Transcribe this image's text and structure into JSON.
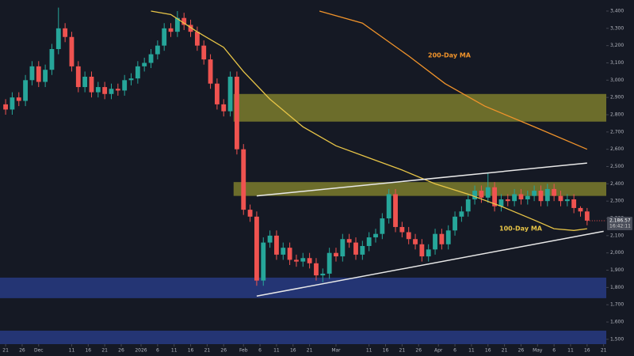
{
  "chart_data": {
    "type": "candlestick",
    "xlim": [
      -1.7,
      181.8
    ],
    "ylim": [
      1472,
      3464
    ],
    "yticks": [
      {
        "value": 1500,
        "label": "1,500"
      },
      {
        "value": 1600,
        "label": "1,600"
      },
      {
        "value": 1700,
        "label": "1,700"
      },
      {
        "value": 1800,
        "label": "1,800"
      },
      {
        "value": 1900,
        "label": "1,900"
      },
      {
        "value": 2000,
        "label": "2,000"
      },
      {
        "value": 2100,
        "label": "2,100"
      },
      {
        "value": 2200,
        "label": "2,200"
      },
      {
        "value": 2300,
        "label": "2,300"
      },
      {
        "value": 2400,
        "label": "2,400"
      },
      {
        "value": 2500,
        "label": "2,500"
      },
      {
        "value": 2600,
        "label": "2,600"
      },
      {
        "value": 2700,
        "label": "2,700"
      },
      {
        "value": 2800,
        "label": "2,800"
      },
      {
        "value": 2900,
        "label": "2,900"
      },
      {
        "value": 3000,
        "label": "3,000"
      },
      {
        "value": 3100,
        "label": "3,100"
      },
      {
        "value": 3200,
        "label": "3,200"
      },
      {
        "value": 3300,
        "label": "3,300"
      },
      {
        "value": 3400,
        "label": "3,400"
      }
    ],
    "xticks": [
      {
        "value": 0,
        "label": "21"
      },
      {
        "value": 5,
        "label": "26"
      },
      {
        "value": 10,
        "label": "Dec"
      },
      {
        "value": 20,
        "label": "11"
      },
      {
        "value": 25,
        "label": "16"
      },
      {
        "value": 30,
        "label": "21"
      },
      {
        "value": 35,
        "label": "26"
      },
      {
        "value": 41,
        "label": "2026"
      },
      {
        "value": 46,
        "label": "6"
      },
      {
        "value": 51,
        "label": "11"
      },
      {
        "value": 56,
        "label": "16"
      },
      {
        "value": 61,
        "label": "21"
      },
      {
        "value": 66,
        "label": "26"
      },
      {
        "value": 72,
        "label": "Feb"
      },
      {
        "value": 77,
        "label": "6"
      },
      {
        "value": 82,
        "label": "11"
      },
      {
        "value": 87,
        "label": "16"
      },
      {
        "value": 92,
        "label": "21"
      },
      {
        "value": 100,
        "label": "Mar"
      },
      {
        "value": 110,
        "label": "11"
      },
      {
        "value": 115,
        "label": "16"
      },
      {
        "value": 120,
        "label": "21"
      },
      {
        "value": 125,
        "label": "26"
      },
      {
        "value": 131,
        "label": "Apr"
      },
      {
        "value": 136,
        "label": "6"
      },
      {
        "value": 141,
        "label": "11"
      },
      {
        "value": 146,
        "label": "16"
      },
      {
        "value": 151,
        "label": "21"
      },
      {
        "value": 156,
        "label": "26"
      },
      {
        "value": 161,
        "label": "May"
      },
      {
        "value": 166,
        "label": "6"
      },
      {
        "value": 171,
        "label": "11"
      },
      {
        "value": 176,
        "label": "16"
      },
      {
        "value": 181,
        "label": "21"
      }
    ],
    "up_color": "#26a69a",
    "down_color": "#ef5350",
    "x": [
      0,
      2,
      4,
      6,
      8,
      10,
      12,
      14,
      16,
      18,
      20,
      22,
      24,
      26,
      28,
      30,
      32,
      34,
      36,
      38,
      40,
      42,
      44,
      46,
      48,
      50,
      52,
      54,
      56,
      58,
      60,
      62,
      64,
      66,
      68,
      70,
      72,
      74,
      76,
      78,
      80,
      82,
      84,
      86,
      88,
      90,
      92,
      94,
      96,
      98,
      100,
      102,
      104,
      106,
      108,
      110,
      112,
      114,
      116,
      118,
      120,
      122,
      124,
      126,
      128,
      130,
      132,
      134,
      136,
      138,
      140,
      142,
      144,
      146,
      148,
      150,
      152,
      154,
      156,
      158,
      160,
      162,
      164,
      166,
      168,
      170,
      172,
      174,
      176
    ],
    "open": [
      2860,
      2830,
      2900,
      2880,
      3000,
      3080,
      2990,
      3060,
      3180,
      3300,
      3250,
      3080,
      2960,
      3020,
      2930,
      2960,
      2920,
      2950,
      2940,
      3000,
      3010,
      3080,
      3100,
      3150,
      3200,
      3300,
      3280,
      3360,
      3320,
      3280,
      3200,
      3120,
      2980,
      2860,
      2820,
      3020,
      2600,
      2250,
      2210,
      1840,
      2060,
      2100,
      1990,
      2030,
      1960,
      1950,
      1970,
      1940,
      1870,
      1880,
      2000,
      1980,
      2080,
      2060,
      1990,
      2040,
      2090,
      2110,
      2200,
      2340,
      2150,
      2120,
      2080,
      2050,
      1980,
      2020,
      2110,
      2050,
      2130,
      2210,
      2240,
      2310,
      2360,
      2320,
      2380,
      2270,
      2310,
      2300,
      2340,
      2310,
      2330,
      2360,
      2300,
      2370,
      2330,
      2300,
      2310,
      2260,
      2240
    ],
    "high": [
      2890,
      2930,
      2930,
      3030,
      3110,
      3110,
      3090,
      3210,
      3420,
      3330,
      3280,
      3110,
      3050,
      3050,
      2990,
      2990,
      2980,
      2980,
      3030,
      3040,
      3110,
      3130,
      3180,
      3230,
      3330,
      3330,
      3400,
      3390,
      3350,
      3310,
      3230,
      3150,
      3010,
      2890,
      3050,
      3050,
      2630,
      2280,
      2240,
      2090,
      2130,
      2130,
      2060,
      2060,
      1990,
      2000,
      2000,
      1970,
      1910,
      2030,
      2030,
      2110,
      2110,
      2090,
      2070,
      2120,
      2140,
      2230,
      2370,
      2370,
      2180,
      2150,
      2110,
      2080,
      2050,
      2140,
      2140,
      2160,
      2240,
      2270,
      2340,
      2390,
      2390,
      2460,
      2410,
      2340,
      2340,
      2370,
      2370,
      2360,
      2390,
      2390,
      2400,
      2400,
      2360,
      2340,
      2340,
      2270,
      2260
    ],
    "low": [
      2800,
      2800,
      2850,
      2850,
      2970,
      2960,
      2960,
      3030,
      3150,
      3220,
      3050,
      2930,
      2930,
      2900,
      2900,
      2890,
      2890,
      2910,
      2910,
      2970,
      2980,
      3050,
      3070,
      3120,
      3170,
      3250,
      3250,
      3290,
      3250,
      3170,
      3090,
      2950,
      2830,
      2790,
      2790,
      2570,
      2220,
      2180,
      1810,
      1810,
      2030,
      1960,
      1960,
      1930,
      1920,
      1920,
      1910,
      1840,
      1830,
      1850,
      1950,
      1950,
      2030,
      1960,
      1960,
      2010,
      2060,
      2080,
      2170,
      2120,
      2090,
      2050,
      2020,
      1950,
      1950,
      1990,
      2020,
      2020,
      2100,
      2180,
      2210,
      2280,
      2290,
      2290,
      2240,
      2240,
      2270,
      2270,
      2280,
      2280,
      2300,
      2270,
      2270,
      2300,
      2270,
      2270,
      2230,
      2210,
      2160
    ],
    "close": [
      2830,
      2900,
      2880,
      3000,
      3080,
      2990,
      3060,
      3180,
      3300,
      3250,
      3080,
      2960,
      3020,
      2930,
      2960,
      2920,
      2950,
      2940,
      3000,
      3010,
      3080,
      3100,
      3150,
      3200,
      3300,
      3280,
      3360,
      3320,
      3280,
      3200,
      3120,
      2980,
      2860,
      2820,
      3020,
      2600,
      2250,
      2210,
      1840,
      2060,
      2100,
      1990,
      2030,
      1960,
      1950,
      1970,
      1940,
      1870,
      1880,
      2000,
      1980,
      2080,
      2060,
      1990,
      2040,
      2090,
      2110,
      2200,
      2340,
      2150,
      2120,
      2080,
      2050,
      1980,
      2020,
      2110,
      2050,
      2130,
      2210,
      2240,
      2310,
      2360,
      2320,
      2380,
      2270,
      2310,
      2300,
      2340,
      2310,
      2330,
      2360,
      2300,
      2370,
      2330,
      2300,
      2310,
      2260,
      2240,
      2187
    ],
    "moving_averages": [
      {
        "name": "100-Day MA",
        "color": "#e8c547",
        "x": [
          44,
          50,
          58,
          66,
          72,
          80,
          90,
          100,
          110,
          120,
          130,
          140,
          150,
          160,
          166,
          172,
          176
        ],
        "values": [
          3400,
          3380,
          3280,
          3190,
          3050,
          2890,
          2730,
          2620,
          2550,
          2480,
          2400,
          2340,
          2270,
          2190,
          2140,
          2130,
          2140
        ]
      },
      {
        "name": "200-Day MA",
        "color": "#f0932b",
        "x": [
          95,
          108,
          122,
          133,
          145,
          160,
          176
        ],
        "values": [
          3400,
          3330,
          3140,
          2980,
          2850,
          2730,
          2600
        ]
      }
    ],
    "zones": [
      {
        "range": [
          2760,
          2920
        ],
        "x": [
          69,
          181.8
        ],
        "color": "#8a8a2e"
      },
      {
        "range": [
          2330,
          2410
        ],
        "x": [
          69,
          181.8
        ],
        "color": "#8a8a2e"
      },
      {
        "range": [
          1738,
          1857
        ],
        "x": [
          -1.7,
          181.8
        ],
        "color": "#2a3f8f"
      },
      {
        "range": [
          1472,
          1550
        ],
        "x": [
          -1.7,
          181.8
        ],
        "color": "#2a3f8f"
      }
    ],
    "trendlines": [
      {
        "x": [
          76,
          176
        ],
        "values": [
          2330,
          2520
        ]
      },
      {
        "x": [
          76,
          181
        ],
        "values": [
          1750,
          2125
        ]
      }
    ],
    "current_price": {
      "value": 2186.57,
      "label": "2,186.57"
    },
    "countdown": "16:42:11"
  }
}
